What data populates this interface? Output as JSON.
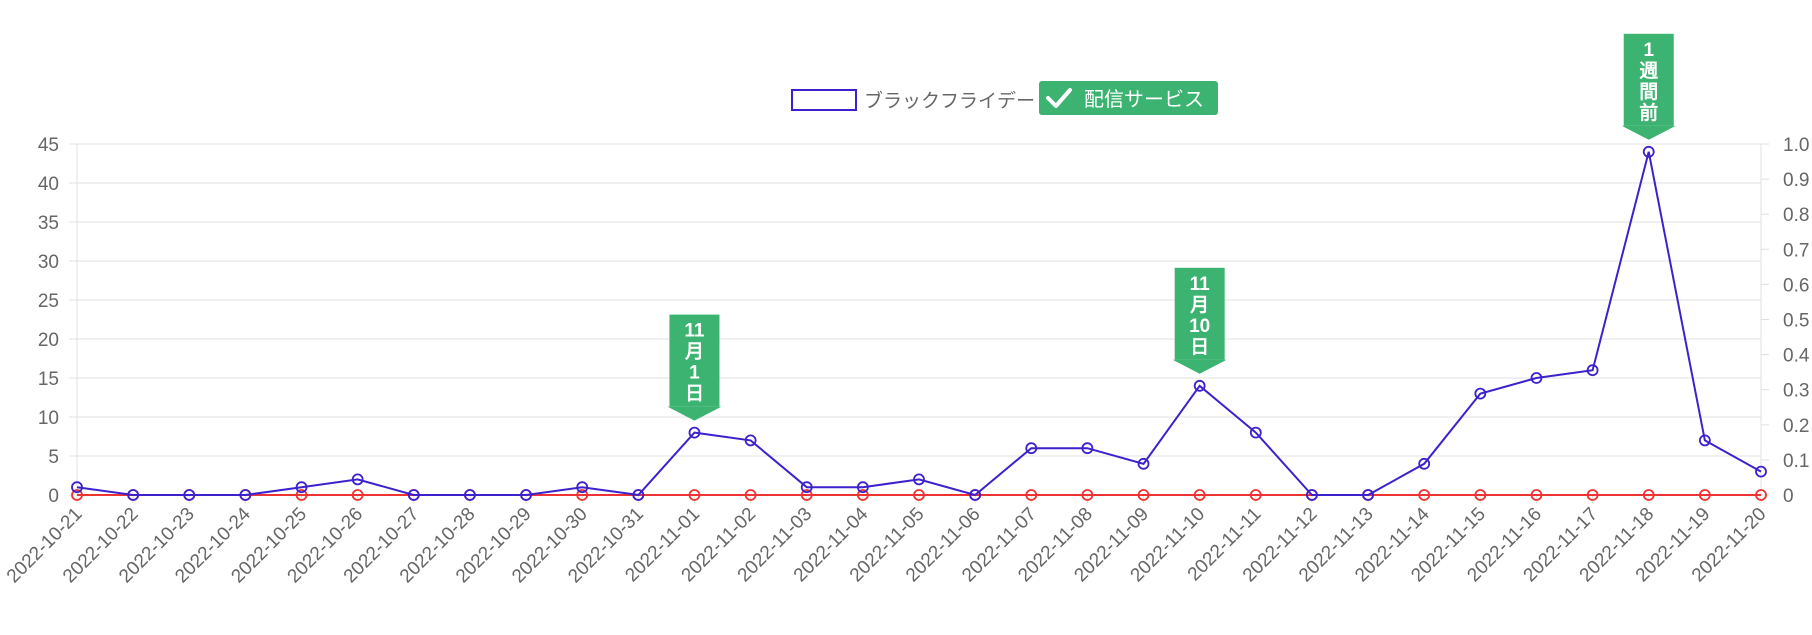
{
  "chart_data": {
    "type": "line",
    "categories": [
      "2022-10-21",
      "2022-10-22",
      "2022-10-23",
      "2022-10-24",
      "2022-10-25",
      "2022-10-26",
      "2022-10-27",
      "2022-10-28",
      "2022-10-29",
      "2022-10-30",
      "2022-10-31",
      "2022-11-01",
      "2022-11-02",
      "2022-11-03",
      "2022-11-04",
      "2022-11-05",
      "2022-11-06",
      "2022-11-07",
      "2022-11-08",
      "2022-11-09",
      "2022-11-10",
      "2022-11-11",
      "2022-11-12",
      "2022-11-13",
      "2022-11-14",
      "2022-11-15",
      "2022-11-16",
      "2022-11-17",
      "2022-11-18",
      "2022-11-19",
      "2022-11-20"
    ],
    "series": [
      {
        "name": "ブラックフライデー",
        "axis": "left",
        "color": "#3b22cc",
        "legend_style": "outline",
        "values": [
          1,
          0,
          0,
          0,
          1,
          2,
          0,
          0,
          0,
          1,
          0,
          8,
          7,
          1,
          1,
          2,
          0,
          6,
          6,
          4,
          14,
          8,
          0,
          0,
          4,
          13,
          15,
          16,
          44,
          7,
          3
        ]
      },
      {
        "name": "配信サービス",
        "axis": "right",
        "color": "#ee3333",
        "legend_style": "checked",
        "values": [
          0,
          0,
          0,
          0,
          0,
          0,
          0,
          0,
          0,
          0,
          0,
          0,
          0,
          0,
          0,
          0,
          0,
          0,
          0,
          0,
          0,
          0,
          0,
          0,
          0,
          0,
          0,
          0,
          0,
          0,
          0
        ]
      }
    ],
    "y_left": {
      "min": 0,
      "max": 45,
      "step": 5,
      "tick_labels": [
        "0",
        "5",
        "10",
        "15",
        "20",
        "25",
        "30",
        "35",
        "40",
        "45"
      ]
    },
    "y_right": {
      "min": 0,
      "max": 1.0,
      "step": 0.1,
      "tick_labels": [
        "0",
        "0.1",
        "0.2",
        "0.3",
        "0.4",
        "0.5",
        "0.6",
        "0.7",
        "0.8",
        "0.9",
        "1.0"
      ]
    },
    "legend_position": "top-center",
    "grid": true,
    "annotations": [
      {
        "category": "2022-11-01",
        "lines": [
          "11",
          "月",
          "1",
          "日"
        ]
      },
      {
        "category": "2022-11-10",
        "lines": [
          "11",
          "月",
          "10",
          "日"
        ]
      },
      {
        "category": "2022-11-18",
        "lines": [
          "1",
          "週",
          "間",
          "前"
        ]
      }
    ],
    "colors": {
      "annotation": "#3cb371",
      "grid": "#e0e0e0",
      "text": "#666666"
    }
  }
}
